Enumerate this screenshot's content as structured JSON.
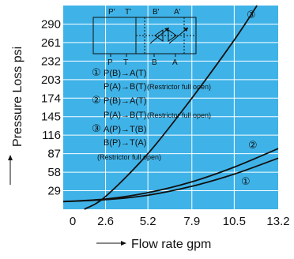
{
  "chart_data": {
    "type": "line",
    "xlabel": "Flow rate gpm",
    "ylabel": "Pressure Loss psi",
    "x_ticks": [
      "0",
      "2.6",
      "5.2",
      "7.9",
      "10.5",
      "13.2"
    ],
    "y_ticks": [
      "29",
      "58",
      "87",
      "116",
      "145",
      "174",
      "203",
      "232",
      "261",
      "290"
    ],
    "xlim": [
      0,
      13.2
    ],
    "ylim": [
      0,
      319
    ],
    "grid": true,
    "background_color": "#3fb3e8",
    "line_color": "#111111",
    "series": [
      {
        "name": "①",
        "x": [
          0,
          2.6,
          5.2,
          7.9,
          10.5,
          13.2
        ],
        "y": [
          12,
          15,
          22,
          36,
          55,
          80
        ]
      },
      {
        "name": "②",
        "x": [
          0,
          2.6,
          5.2,
          7.9,
          10.5,
          13.2
        ],
        "y": [
          12,
          16,
          26,
          43,
          66,
          95
        ]
      },
      {
        "name": "③",
        "x": [
          1.3,
          2.6,
          5.2,
          7.9,
          10.5,
          11.9
        ],
        "y": [
          0,
          20,
          87,
          174,
          265,
          319
        ]
      }
    ],
    "legend_markers": {
      "s1": "①",
      "s2": "②",
      "s3": "③"
    },
    "annotations": [
      {
        "num": "①",
        "text": "P(B)→A(T)"
      },
      {
        "num": "",
        "text": "P(A)→B(T)",
        "note": "(Restrictor full open)"
      },
      {
        "num": "②",
        "text": "P(B)→A(T)"
      },
      {
        "num": "",
        "text": "P(A)→B(T)",
        "note": "(Restrictor full open)"
      },
      {
        "num": "③",
        "text": "A(P)→T(B)"
      },
      {
        "num": "",
        "text": "B(P)→T(A)",
        "note": ""
      },
      {
        "num": "",
        "text": "",
        "note": "(Restrictor full open)"
      }
    ],
    "schematic": {
      "top_labels": [
        "P'",
        "T'",
        "B'",
        "A'"
      ],
      "bottom_labels": [
        "P",
        "T",
        "B",
        "A"
      ]
    }
  }
}
